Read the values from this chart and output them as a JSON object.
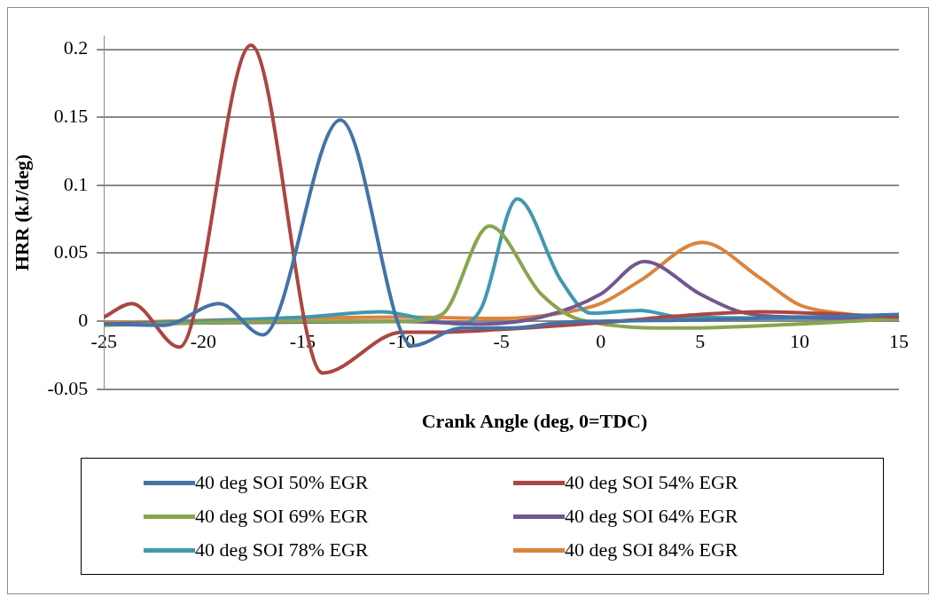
{
  "chart_data": {
    "type": "line",
    "xlabel": "Crank Angle (deg, 0=TDC)",
    "ylabel": "HRR (kJ/deg)",
    "xlim": [
      -25,
      15
    ],
    "xticks": [
      -25,
      -20,
      -15,
      -10,
      -5,
      0,
      5,
      10,
      15
    ],
    "ylim": [
      -0.05,
      0.21
    ],
    "yticks": [
      -0.05,
      0,
      0.05,
      0.1,
      0.15,
      0.2
    ],
    "grid": "y",
    "legend": "bottom",
    "marker": "none",
    "line_style": "solid",
    "series": [
      {
        "name": "40 deg SOI 50% EGR",
        "color": "#4572a7",
        "x": [
          -25,
          -22,
          -19.2,
          -17,
          -13.1,
          -9.5,
          -7,
          -4.5,
          -2,
          0,
          5,
          15
        ],
        "values": [
          -0.002,
          -0.003,
          0.013,
          -0.01,
          0.148,
          -0.018,
          -0.005,
          -0.005,
          -0.001,
          0,
          0.001,
          0.005
        ]
      },
      {
        "name": "40 deg SOI 54% EGR",
        "color": "#aa4643",
        "x": [
          -25,
          -23.6,
          -21.2,
          -17.6,
          -14,
          -10,
          -8,
          -5,
          0,
          5,
          8,
          15
        ],
        "values": [
          0.003,
          0.013,
          -0.019,
          0.203,
          -0.038,
          -0.008,
          -0.008,
          -0.006,
          -0.001,
          0.005,
          0.007,
          0.003
        ]
      },
      {
        "name": "40 deg SOI 69% EGR",
        "color": "#89a54e",
        "x": [
          -25,
          -15,
          -10,
          -8,
          -5.6,
          -3,
          -1,
          4,
          10,
          15
        ],
        "values": [
          -0.003,
          0,
          0,
          0.005,
          0.07,
          0.02,
          0.001,
          -0.005,
          -0.002,
          0.002
        ]
      },
      {
        "name": "40 deg SOI 64% EGR",
        "color": "#71588f",
        "x": [
          -25,
          -10,
          -6,
          -3,
          0,
          2.2,
          5,
          7,
          10,
          15
        ],
        "values": [
          -0.002,
          0,
          -0.002,
          0.003,
          0.02,
          0.044,
          0.02,
          0.007,
          0.003,
          0.002
        ]
      },
      {
        "name": "40 deg SOI 78% EGR",
        "color": "#4198af",
        "x": [
          -25,
          -15,
          -11,
          -9,
          -7,
          -6,
          -4.2,
          -2,
          -0.5,
          2,
          4,
          15
        ],
        "values": [
          -0.002,
          0.003,
          0.007,
          0.002,
          -0.002,
          0.01,
          0.09,
          0.03,
          0.006,
          0.008,
          0.003,
          0.002
        ]
      },
      {
        "name": "40 deg SOI 84% EGR",
        "color": "#db843d",
        "x": [
          -25,
          -10,
          -5,
          -2,
          0,
          2,
          5.1,
          8,
          10,
          12,
          15
        ],
        "values": [
          -0.001,
          0.003,
          0.002,
          0.006,
          0.013,
          0.03,
          0.058,
          0.032,
          0.012,
          0.006,
          0.002
        ]
      }
    ]
  }
}
